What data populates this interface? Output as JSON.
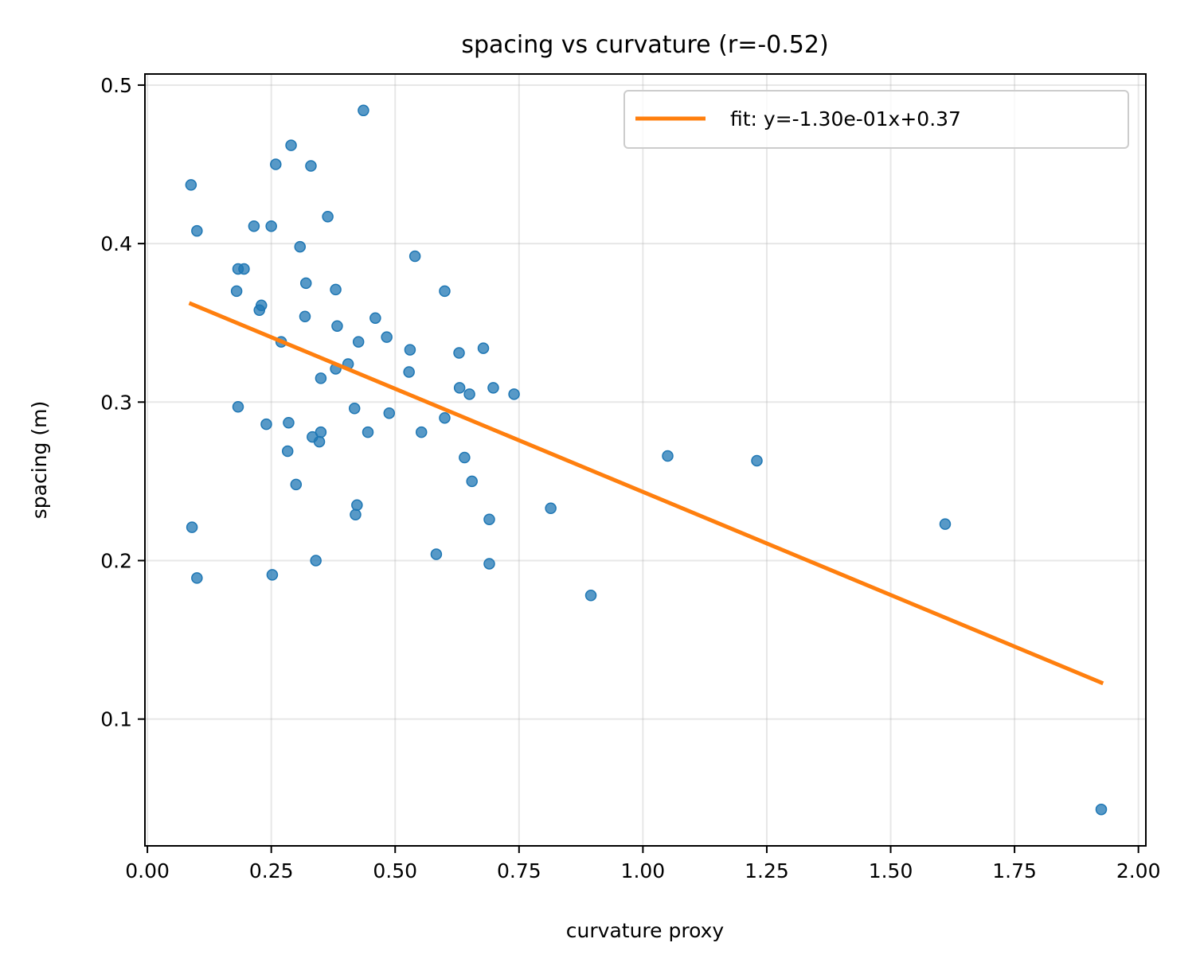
{
  "chart_data": {
    "type": "scatter",
    "title": "spacing vs curvature  (r=-0.52)",
    "xlabel": "curvature proxy",
    "ylabel": "spacing (m)",
    "xlim": [
      -0.005,
      2.015
    ],
    "ylim": [
      0.02,
      0.507
    ],
    "xticks": [
      0.0,
      0.25,
      0.5,
      0.75,
      1.0,
      1.25,
      1.5,
      1.75,
      2.0
    ],
    "xtick_labels": [
      "0.00",
      "0.25",
      "0.50",
      "0.75",
      "1.00",
      "1.25",
      "1.50",
      "1.75",
      "2.00"
    ],
    "yticks": [
      0.1,
      0.2,
      0.3,
      0.4,
      0.5
    ],
    "ytick_labels": [
      "0.1",
      "0.2",
      "0.3",
      "0.4",
      "0.5"
    ],
    "grid": true,
    "legend_position": "top-right",
    "colors": {
      "points": "#1f77b4",
      "fit": "#ff7f0e"
    },
    "series": [
      {
        "kind": "scatter",
        "points": [
          [
            0.436,
            0.484
          ],
          [
            0.29,
            0.462
          ],
          [
            0.259,
            0.45
          ],
          [
            0.33,
            0.449
          ],
          [
            0.088,
            0.437
          ],
          [
            0.364,
            0.417
          ],
          [
            0.215,
            0.411
          ],
          [
            0.25,
            0.411
          ],
          [
            0.1,
            0.408
          ],
          [
            0.308,
            0.398
          ],
          [
            0.54,
            0.392
          ],
          [
            0.183,
            0.384
          ],
          [
            0.195,
            0.384
          ],
          [
            0.32,
            0.375
          ],
          [
            0.6,
            0.37
          ],
          [
            0.38,
            0.371
          ],
          [
            0.18,
            0.37
          ],
          [
            0.23,
            0.361
          ],
          [
            0.226,
            0.358
          ],
          [
            0.318,
            0.354
          ],
          [
            0.46,
            0.353
          ],
          [
            0.383,
            0.348
          ],
          [
            0.483,
            0.341
          ],
          [
            0.27,
            0.338
          ],
          [
            0.426,
            0.338
          ],
          [
            0.53,
            0.333
          ],
          [
            0.678,
            0.334
          ],
          [
            0.629,
            0.331
          ],
          [
            0.405,
            0.324
          ],
          [
            0.38,
            0.321
          ],
          [
            0.528,
            0.319
          ],
          [
            0.35,
            0.315
          ],
          [
            0.63,
            0.309
          ],
          [
            0.698,
            0.309
          ],
          [
            0.65,
            0.305
          ],
          [
            0.74,
            0.305
          ],
          [
            0.183,
            0.297
          ],
          [
            0.418,
            0.296
          ],
          [
            0.488,
            0.293
          ],
          [
            0.6,
            0.29
          ],
          [
            0.24,
            0.286
          ],
          [
            0.285,
            0.287
          ],
          [
            0.35,
            0.281
          ],
          [
            0.445,
            0.281
          ],
          [
            0.553,
            0.281
          ],
          [
            0.333,
            0.278
          ],
          [
            0.347,
            0.275
          ],
          [
            0.283,
            0.269
          ],
          [
            0.64,
            0.265
          ],
          [
            1.05,
            0.266
          ],
          [
            1.23,
            0.263
          ],
          [
            0.655,
            0.25
          ],
          [
            0.3,
            0.248
          ],
          [
            0.423,
            0.235
          ],
          [
            0.814,
            0.233
          ],
          [
            0.42,
            0.229
          ],
          [
            0.69,
            0.226
          ],
          [
            1.61,
            0.223
          ],
          [
            0.09,
            0.221
          ],
          [
            0.583,
            0.204
          ],
          [
            0.34,
            0.2
          ],
          [
            0.69,
            0.198
          ],
          [
            0.252,
            0.191
          ],
          [
            0.1,
            0.189
          ],
          [
            0.895,
            0.178
          ],
          [
            1.925,
            0.043
          ]
        ]
      },
      {
        "kind": "line",
        "name": "fit: y=-1.30e-01x+0.37",
        "x": [
          0.088,
          1.925
        ],
        "y": [
          0.362,
          0.123
        ]
      }
    ]
  }
}
